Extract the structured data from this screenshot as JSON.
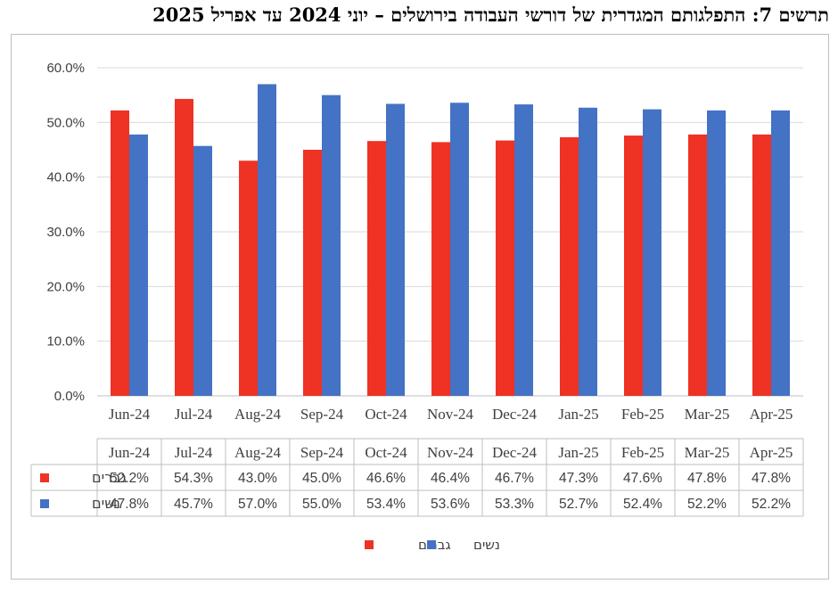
{
  "title": "תרשים 7: התפלגותם המגדרית של דורשי העבודה בירושלים – יוני 2024 עד אפריל 2025",
  "chart_data": {
    "type": "bar",
    "categories": [
      "Jun-24",
      "Jul-24",
      "Aug-24",
      "Sep-24",
      "Oct-24",
      "Nov-24",
      "Dec-24",
      "Jan-25",
      "Feb-25",
      "Mar-25",
      "Apr-25"
    ],
    "series": [
      {
        "name": "גברים",
        "color": "#ee3224",
        "values": [
          52.2,
          54.3,
          43.0,
          45.0,
          46.6,
          46.4,
          46.7,
          47.3,
          47.6,
          47.8,
          47.8
        ],
        "labels": [
          "52.2%",
          "54.3%",
          "43.0%",
          "45.0%",
          "46.6%",
          "46.4%",
          "46.7%",
          "47.3%",
          "47.6%",
          "47.8%",
          "47.8%"
        ]
      },
      {
        "name": "נשים",
        "color": "#4472c4",
        "values": [
          47.8,
          45.7,
          57.0,
          55.0,
          53.4,
          53.6,
          53.3,
          52.7,
          52.4,
          52.2,
          52.2
        ],
        "labels": [
          "47.8%",
          "45.7%",
          "57.0%",
          "55.0%",
          "53.4%",
          "53.6%",
          "53.3%",
          "52.7%",
          "52.4%",
          "52.2%",
          "52.2%"
        ]
      }
    ],
    "yticks": [
      "0.0%",
      "10.0%",
      "20.0%",
      "30.0%",
      "40.0%",
      "50.0%",
      "60.0%"
    ],
    "ylim": [
      0,
      60
    ],
    "grid": true,
    "legend": "bottom-center",
    "data_table": true
  }
}
